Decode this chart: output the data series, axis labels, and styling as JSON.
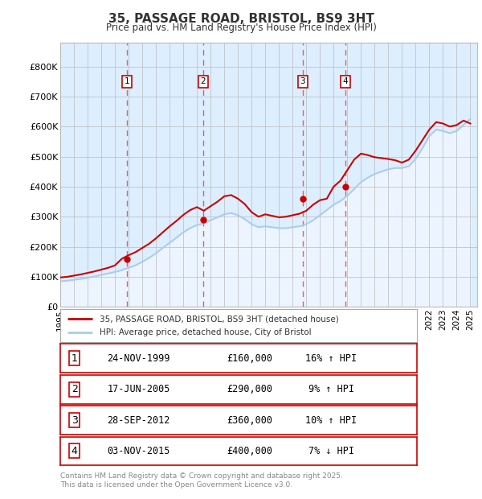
{
  "title": "35, PASSAGE ROAD, BRISTOL, BS9 3HT",
  "subtitle": "Price paid vs. HM Land Registry's House Price Index (HPI)",
  "x_start": 1995,
  "x_end": 2025.5,
  "y_min": 0,
  "y_max": 880000,
  "y_ticks": [
    0,
    100000,
    200000,
    300000,
    400000,
    500000,
    600000,
    700000,
    800000
  ],
  "y_tick_labels": [
    "£0",
    "£100K",
    "£200K",
    "£300K",
    "£400K",
    "£500K",
    "£600K",
    "£700K",
    "£800K"
  ],
  "x_ticks": [
    1995,
    1996,
    1997,
    1998,
    1999,
    2000,
    2001,
    2002,
    2003,
    2004,
    2005,
    2006,
    2007,
    2008,
    2009,
    2010,
    2011,
    2012,
    2013,
    2014,
    2015,
    2016,
    2017,
    2018,
    2019,
    2020,
    2021,
    2022,
    2023,
    2024,
    2025
  ],
  "sale_dates": [
    1999.9,
    2005.46,
    2012.74,
    2015.84
  ],
  "sale_prices": [
    160000,
    290000,
    360000,
    400000
  ],
  "sale_labels": [
    "1",
    "2",
    "3",
    "4"
  ],
  "vline_color": "#e06060",
  "sale_color": "#cc0000",
  "hpi_color": "#aaccee",
  "hpi_fill_color": "#ddeeff",
  "legend_labels": [
    "35, PASSAGE ROAD, BRISTOL, BS9 3HT (detached house)",
    "HPI: Average price, detached house, City of Bristol"
  ],
  "table_data": [
    [
      "1",
      "24-NOV-1999",
      "£160,000",
      "16% ↑ HPI"
    ],
    [
      "2",
      "17-JUN-2005",
      "£290,000",
      "9% ↑ HPI"
    ],
    [
      "3",
      "28-SEP-2012",
      "£360,000",
      "10% ↑ HPI"
    ],
    [
      "4",
      "03-NOV-2015",
      "£400,000",
      "7% ↓ HPI"
    ]
  ],
  "footer": "Contains HM Land Registry data © Crown copyright and database right 2025.\nThis data is licensed under the Open Government Licence v3.0.",
  "bg_color": "#ffffff",
  "plot_bg_color": "#ddeeff",
  "grid_color": "#bbbbbb",
  "hpi_years": [
    1995.0,
    1995.5,
    1996.0,
    1996.5,
    1997.0,
    1997.5,
    1998.0,
    1998.5,
    1999.0,
    1999.5,
    2000.0,
    2000.5,
    2001.0,
    2001.5,
    2002.0,
    2002.5,
    2003.0,
    2003.5,
    2004.0,
    2004.5,
    2005.0,
    2005.5,
    2006.0,
    2006.5,
    2007.0,
    2007.5,
    2008.0,
    2008.5,
    2009.0,
    2009.5,
    2010.0,
    2010.5,
    2011.0,
    2011.5,
    2012.0,
    2012.5,
    2013.0,
    2013.5,
    2014.0,
    2014.5,
    2015.0,
    2015.5,
    2016.0,
    2016.5,
    2017.0,
    2017.5,
    2018.0,
    2018.5,
    2019.0,
    2019.5,
    2020.0,
    2020.5,
    2021.0,
    2021.5,
    2022.0,
    2022.5,
    2023.0,
    2023.5,
    2024.0,
    2024.5,
    2025.0
  ],
  "hpi_values": [
    85000,
    87000,
    90000,
    93000,
    97000,
    101000,
    106000,
    111000,
    116000,
    122000,
    130000,
    138000,
    150000,
    163000,
    178000,
    196000,
    213000,
    230000,
    248000,
    262000,
    272000,
    278000,
    288000,
    298000,
    308000,
    312000,
    305000,
    292000,
    275000,
    265000,
    268000,
    265000,
    262000,
    262000,
    265000,
    268000,
    275000,
    288000,
    305000,
    322000,
    340000,
    352000,
    370000,
    392000,
    415000,
    430000,
    442000,
    450000,
    458000,
    462000,
    462000,
    468000,
    492000,
    528000,
    568000,
    590000,
    585000,
    578000,
    585000,
    605000,
    625000
  ],
  "prop_years": [
    1995.0,
    1995.5,
    1996.0,
    1996.5,
    1997.0,
    1997.5,
    1998.0,
    1998.5,
    1999.0,
    1999.5,
    2000.0,
    2000.5,
    2001.0,
    2001.5,
    2002.0,
    2002.5,
    2003.0,
    2003.5,
    2004.0,
    2004.5,
    2005.0,
    2005.5,
    2006.0,
    2006.5,
    2007.0,
    2007.5,
    2008.0,
    2008.5,
    2009.0,
    2009.5,
    2010.0,
    2010.5,
    2011.0,
    2011.5,
    2012.0,
    2012.5,
    2013.0,
    2013.5,
    2014.0,
    2014.5,
    2015.0,
    2015.5,
    2016.0,
    2016.5,
    2017.0,
    2017.5,
    2018.0,
    2018.5,
    2019.0,
    2019.5,
    2020.0,
    2020.5,
    2021.0,
    2021.5,
    2022.0,
    2022.5,
    2023.0,
    2023.5,
    2024.0,
    2024.5,
    2025.0
  ],
  "prop_values": [
    98000,
    100000,
    104000,
    108000,
    113000,
    118000,
    124000,
    130000,
    138000,
    160000,
    172000,
    182000,
    196000,
    210000,
    228000,
    248000,
    268000,
    286000,
    306000,
    322000,
    332000,
    320000,
    335000,
    350000,
    368000,
    372000,
    360000,
    342000,
    315000,
    300000,
    308000,
    303000,
    298000,
    300000,
    305000,
    310000,
    320000,
    340000,
    355000,
    360000,
    400000,
    420000,
    455000,
    490000,
    510000,
    505000,
    498000,
    495000,
    492000,
    488000,
    480000,
    490000,
    520000,
    555000,
    590000,
    615000,
    610000,
    600000,
    605000,
    620000,
    610000
  ]
}
